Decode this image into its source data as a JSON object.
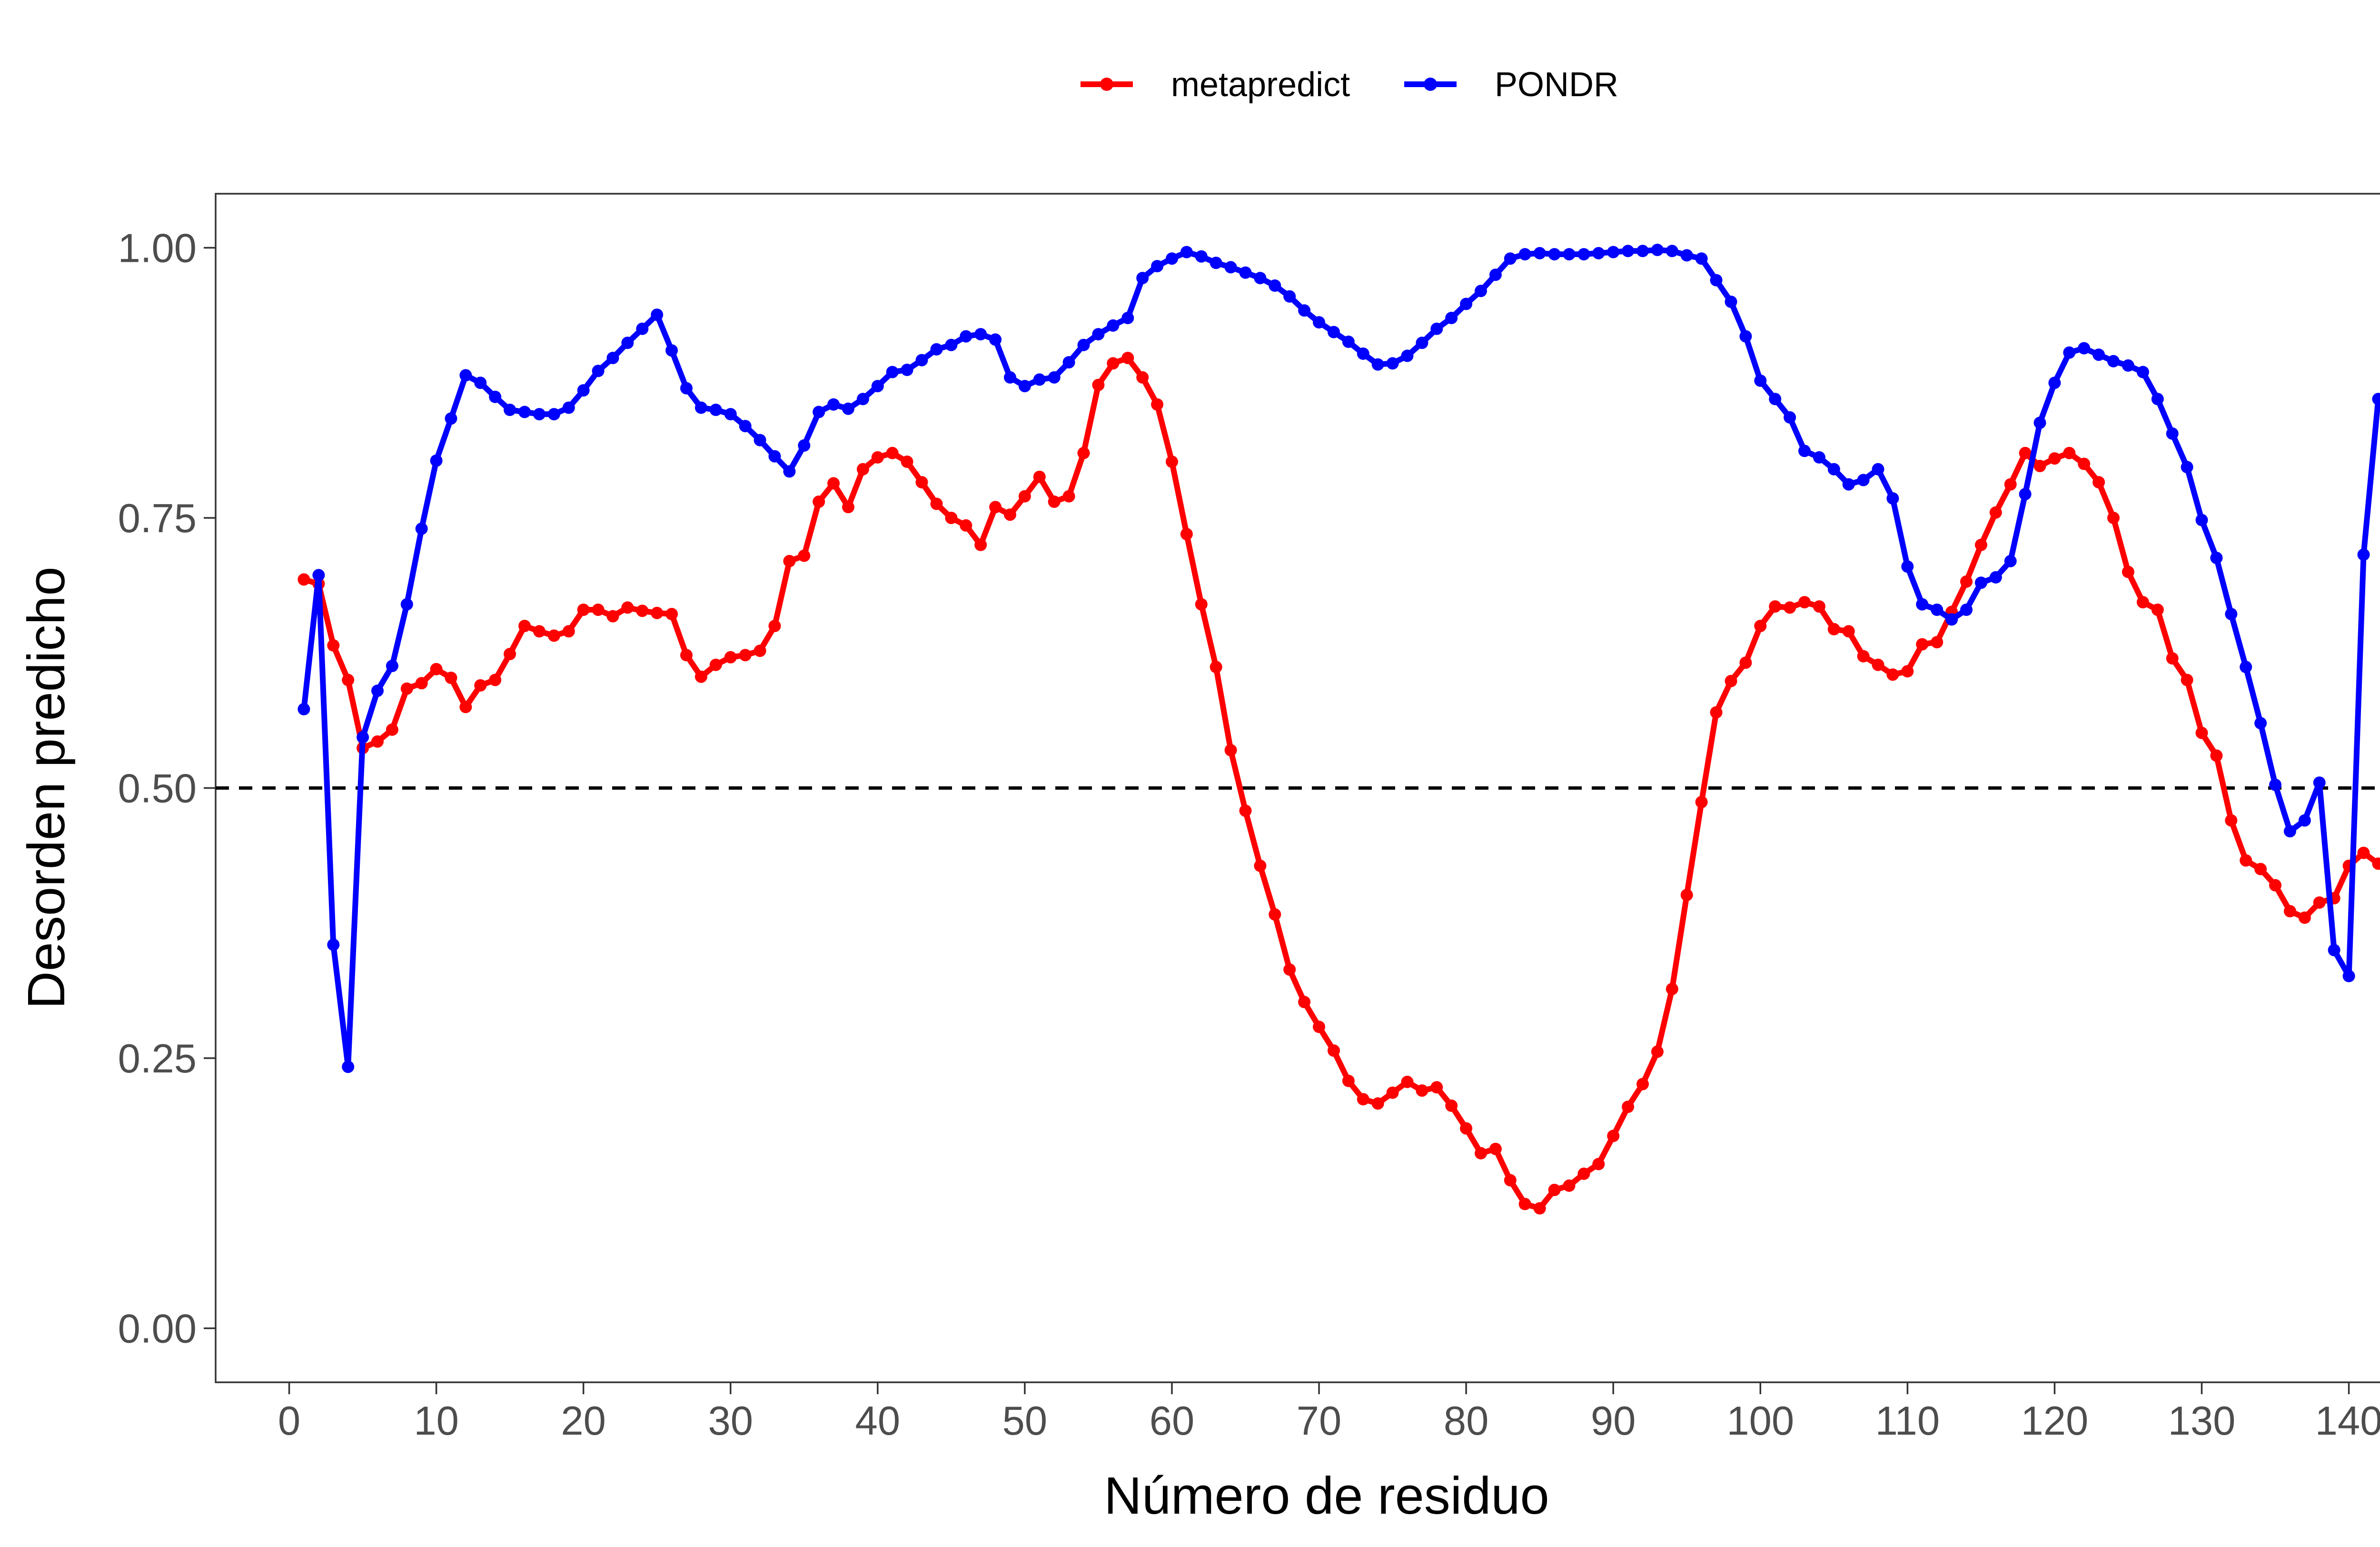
{
  "chart_data": {
    "type": "line",
    "title": "",
    "xlabel": "Número de residuo",
    "ylabel": "Desorden predicho",
    "xlim": [
      -5,
      146
    ],
    "ylim": [
      -0.05,
      1.05
    ],
    "xticks": [
      0,
      10,
      20,
      30,
      40,
      50,
      60,
      70,
      80,
      90,
      100,
      110,
      120,
      130,
      140
    ],
    "yticks": [
      0.0,
      0.25,
      0.5,
      0.75,
      1.0
    ],
    "ytick_labels": [
      "0.00",
      "0.25",
      "0.50",
      "0.75",
      "1.00"
    ],
    "grid": false,
    "legend_position": "top",
    "reference_line": {
      "y": 0.5,
      "style": "dashed",
      "color": "#000000"
    },
    "series": [
      {
        "name": "metapredict",
        "color": "#ff0000",
        "values": [
          0.693,
          0.689,
          0.632,
          0.6,
          0.537,
          0.543,
          0.554,
          0.592,
          0.597,
          0.61,
          0.602,
          0.575,
          0.595,
          0.6,
          0.624,
          0.65,
          0.645,
          0.641,
          0.645,
          0.665,
          0.665,
          0.659,
          0.667,
          0.664,
          0.662,
          0.661,
          0.623,
          0.603,
          0.614,
          0.621,
          0.623,
          0.627,
          0.65,
          0.71,
          0.715,
          0.765,
          0.782,
          0.76,
          0.795,
          0.806,
          0.81,
          0.802,
          0.783,
          0.763,
          0.75,
          0.743,
          0.725,
          0.76,
          0.753,
          0.77,
          0.788,
          0.765,
          0.77,
          0.81,
          0.873,
          0.893,
          0.898,
          0.88,
          0.855,
          0.802,
          0.735,
          0.67,
          0.612,
          0.535,
          0.479,
          0.428,
          0.383,
          0.332,
          0.302,
          0.279,
          0.257,
          0.229,
          0.212,
          0.208,
          0.218,
          0.228,
          0.22,
          0.223,
          0.206,
          0.185,
          0.162,
          0.166,
          0.137,
          0.115,
          0.111,
          0.128,
          0.132,
          0.143,
          0.152,
          0.178,
          0.205,
          0.226,
          0.256,
          0.314,
          0.401,
          0.487,
          0.57,
          0.599,
          0.616,
          0.65,
          0.668,
          0.667,
          0.672,
          0.668,
          0.647,
          0.645,
          0.622,
          0.614,
          0.605,
          0.608,
          0.633,
          0.635,
          0.663,
          0.691,
          0.725,
          0.755,
          0.781,
          0.81,
          0.798,
          0.805,
          0.81,
          0.8,
          0.783,
          0.75,
          0.7,
          0.672,
          0.665,
          0.62,
          0.6,
          0.551,
          0.53,
          0.47,
          0.433,
          0.425,
          0.41,
          0.386,
          0.38,
          0.394,
          0.398,
          0.428,
          0.44,
          0.43
        ]
      },
      {
        "name": "PONDR",
        "color": "#0000ff",
        "values": [
          0.573,
          0.697,
          0.355,
          0.242,
          0.547,
          0.59,
          0.613,
          0.67,
          0.74,
          0.803,
          0.842,
          0.882,
          0.875,
          0.862,
          0.85,
          0.848,
          0.846,
          0.846,
          0.852,
          0.868,
          0.886,
          0.898,
          0.912,
          0.925,
          0.938,
          0.905,
          0.87,
          0.852,
          0.85,
          0.846,
          0.835,
          0.822,
          0.807,
          0.793,
          0.817,
          0.848,
          0.855,
          0.851,
          0.86,
          0.872,
          0.885,
          0.887,
          0.896,
          0.906,
          0.91,
          0.918,
          0.92,
          0.915,
          0.88,
          0.872,
          0.878,
          0.88,
          0.894,
          0.91,
          0.92,
          0.928,
          0.935,
          0.972,
          0.983,
          0.99,
          0.996,
          0.992,
          0.986,
          0.982,
          0.977,
          0.972,
          0.965,
          0.955,
          0.942,
          0.931,
          0.922,
          0.913,
          0.902,
          0.892,
          0.893,
          0.9,
          0.912,
          0.925,
          0.935,
          0.948,
          0.96,
          0.975,
          0.99,
          0.994,
          0.995,
          0.994,
          0.994,
          0.994,
          0.995,
          0.996,
          0.997,
          0.997,
          0.998,
          0.997,
          0.993,
          0.99,
          0.97,
          0.95,
          0.918,
          0.877,
          0.86,
          0.843,
          0.812,
          0.806,
          0.795,
          0.781,
          0.785,
          0.795,
          0.768,
          0.705,
          0.67,
          0.665,
          0.656,
          0.665,
          0.69,
          0.695,
          0.71,
          0.772,
          0.838,
          0.875,
          0.903,
          0.907,
          0.901,
          0.895,
          0.891,
          0.885,
          0.86,
          0.828,
          0.797,
          0.748,
          0.713,
          0.661,
          0.612,
          0.56,
          0.503,
          0.46,
          0.47,
          0.505,
          0.35,
          0.326,
          0.716,
          0.86
        ]
      }
    ]
  }
}
